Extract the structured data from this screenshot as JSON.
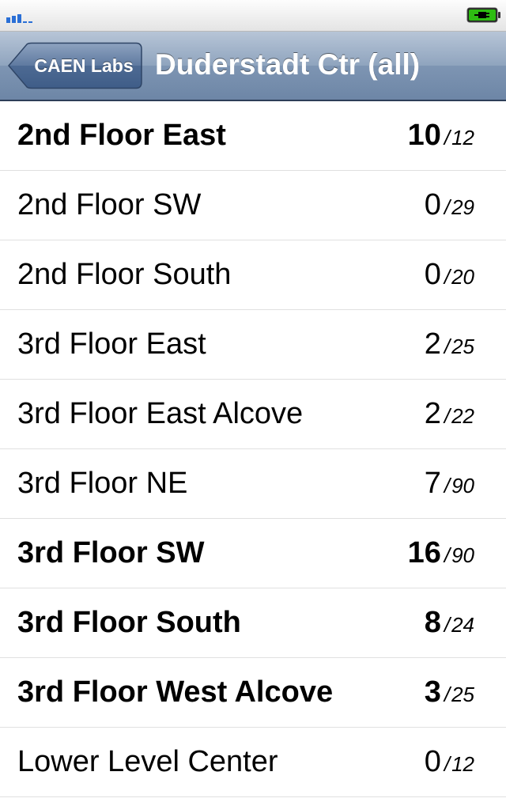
{
  "status_bar": {
    "signal_icon": "signal-bars-icon",
    "battery_icon": "battery-charging-icon",
    "battery_color": "#2ebd12"
  },
  "nav": {
    "back_label": "CAEN Labs",
    "title": "Duderstadt Ctr (all)"
  },
  "rows": [
    {
      "name": "2nd Floor East",
      "available": "10",
      "separator": "/",
      "total": "12",
      "bold": true
    },
    {
      "name": "2nd Floor SW",
      "available": "0",
      "separator": "/",
      "total": "29",
      "bold": false
    },
    {
      "name": "2nd Floor South",
      "available": "0",
      "separator": "/",
      "total": "20",
      "bold": false
    },
    {
      "name": "3rd Floor East",
      "available": "2",
      "separator": "/",
      "total": "25",
      "bold": false
    },
    {
      "name": "3rd Floor East Alcove",
      "available": "2",
      "separator": "/",
      "total": "22",
      "bold": false
    },
    {
      "name": "3rd Floor NE",
      "available": "7",
      "separator": "/",
      "total": "90",
      "bold": false
    },
    {
      "name": "3rd Floor SW",
      "available": "16",
      "separator": "/",
      "total": "90",
      "bold": true
    },
    {
      "name": "3rd Floor South",
      "available": "8",
      "separator": "/",
      "total": "24",
      "bold": true
    },
    {
      "name": "3rd Floor West Alcove",
      "available": "3",
      "separator": "/",
      "total": "25",
      "bold": true
    },
    {
      "name": "Lower Level Center",
      "available": "0",
      "separator": "/",
      "total": "12",
      "bold": false
    }
  ]
}
